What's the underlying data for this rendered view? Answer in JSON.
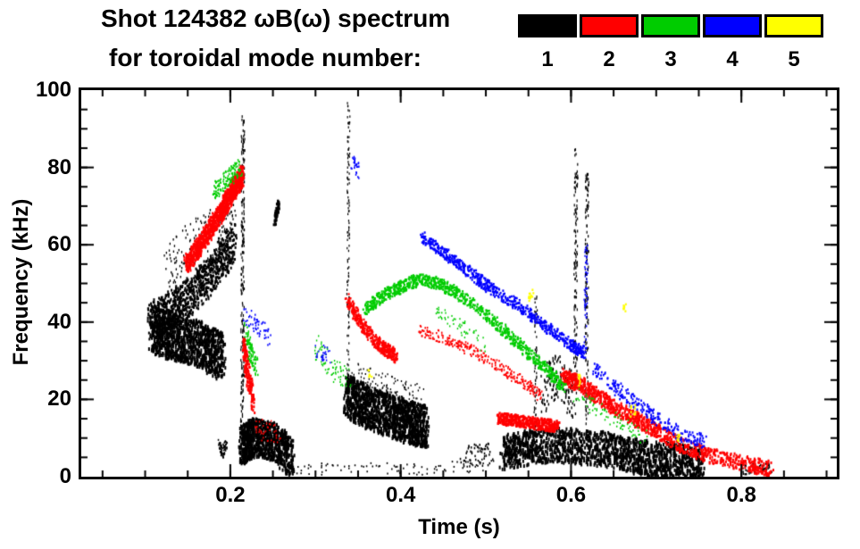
{
  "chart_data": {
    "type": "scatter",
    "title": "Shot 124382 ωB(ω) spectrum",
    "subtitle": "for toroidal mode number:",
    "xlabel": "Time (s)",
    "ylabel": "Frequency (kHz)",
    "xlim": [
      0.025,
      0.912
    ],
    "ylim": [
      0,
      100
    ],
    "xticks": [
      {
        "v": 0.2,
        "label": "0.2"
      },
      {
        "v": 0.4,
        "label": "0.4"
      },
      {
        "v": 0.6,
        "label": "0.6"
      },
      {
        "v": 0.8,
        "label": "0.8"
      }
    ],
    "xminor_step": 0.05,
    "yticks": [
      {
        "v": 0,
        "label": "0"
      },
      {
        "v": 20,
        "label": "20"
      },
      {
        "v": 40,
        "label": "40"
      },
      {
        "v": 60,
        "label": "60"
      },
      {
        "v": 80,
        "label": "80"
      },
      {
        "v": 100,
        "label": "100"
      }
    ],
    "yminor_step": 5,
    "grid": false,
    "legend_position": "top-right",
    "legend": [
      {
        "label": "1",
        "color": "#000000"
      },
      {
        "label": "2",
        "color": "#ff0000"
      },
      {
        "label": "3",
        "color": "#00cc00"
      },
      {
        "label": "4",
        "color": "#0000ff"
      },
      {
        "label": "5",
        "color": "#ffff00"
      }
    ],
    "series": [
      {
        "name": "n=1",
        "color": "#000000",
        "tracks": [
          {
            "p": [
              [
                0.105,
                40
              ],
              [
                0.13,
                43
              ],
              [
                0.155,
                47
              ],
              [
                0.18,
                53
              ],
              [
                0.205,
                61
              ]
            ],
            "n": 850,
            "fj": 5,
            "tj": 0.004,
            "w": 2,
            "h": 3
          },
          {
            "p": [
              [
                0.108,
                38
              ],
              [
                0.135,
                36
              ],
              [
                0.165,
                34
              ],
              [
                0.19,
                31
              ]
            ],
            "n": 1100,
            "fj": 6,
            "tj": 0.005,
            "w": 2,
            "h": 4
          },
          {
            "p": [
              [
                0.125,
                54
              ],
              [
                0.155,
                60
              ],
              [
                0.185,
                64
              ],
              [
                0.205,
                67
              ]
            ],
            "n": 150,
            "fj": 6,
            "tj": 0.004,
            "w": 1.3,
            "h": 2.5
          },
          {
            "p": [
              [
                0.214,
                5
              ],
              [
                0.215,
                93
              ]
            ],
            "n": 230,
            "fj": 2,
            "tj": 0.002,
            "w": 1.2,
            "h": 3
          },
          {
            "p": [
              [
                0.252,
                66
              ],
              [
                0.257,
                71
              ]
            ],
            "n": 70,
            "fj": 1.5,
            "tj": 0.0012,
            "w": 2,
            "h": 3
          },
          {
            "p": [
              [
                0.213,
                8
              ],
              [
                0.228,
                10
              ],
              [
                0.25,
                9
              ],
              [
                0.272,
                5
              ]
            ],
            "n": 900,
            "fj": 5,
            "tj": 0.004,
            "w": 2,
            "h": 4
          },
          {
            "p": [
              [
                0.186,
                9
              ],
              [
                0.191,
                6
              ],
              [
                0.196,
                9
              ]
            ],
            "n": 70,
            "fj": 1.5,
            "tj": 0.001,
            "w": 1.5,
            "h": 2
          },
          {
            "p": [
              [
                0.336,
                21
              ],
              [
                0.36,
                18
              ],
              [
                0.385,
                16
              ],
              [
                0.41,
                14
              ],
              [
                0.43,
                13
              ]
            ],
            "n": 1350,
            "fj": 5.5,
            "tj": 0.004,
            "w": 2,
            "h": 4
          },
          {
            "p": [
              [
                0.338,
                25
              ],
              [
                0.339,
                96
              ]
            ],
            "n": 110,
            "fj": 2,
            "tj": 0.0015,
            "w": 1.2,
            "h": 2.5
          },
          {
            "p": [
              [
                0.52,
                6
              ],
              [
                0.56,
                8
              ],
              [
                0.6,
                8
              ],
              [
                0.64,
                7
              ],
              [
                0.68,
                5
              ],
              [
                0.72,
                4
              ],
              [
                0.755,
                3
              ]
            ],
            "n": 1600,
            "fj": 4.5,
            "tj": 0.004,
            "w": 2,
            "h": 4
          },
          {
            "p": [
              [
                0.605,
                20
              ],
              [
                0.606,
                85
              ]
            ],
            "n": 130,
            "fj": 2,
            "tj": 0.002,
            "w": 1.2,
            "h": 3
          },
          {
            "p": [
              [
                0.618,
                15
              ],
              [
                0.619,
                80
              ]
            ],
            "n": 140,
            "fj": 2,
            "tj": 0.002,
            "w": 1.2,
            "h": 3
          },
          {
            "p": [
              [
                0.27,
                2
              ],
              [
                0.35,
                2
              ],
              [
                0.44,
                2
              ],
              [
                0.5,
                3
              ]
            ],
            "n": 90,
            "fj": 1.5,
            "tj": 0.01,
            "w": 1.5,
            "h": 2
          },
          {
            "p": [
              [
                0.47,
                5
              ],
              [
                0.505,
                6
              ]
            ],
            "n": 55,
            "fj": 3,
            "tj": 0.006,
            "w": 1.5,
            "h": 2.5
          },
          {
            "p": [
              [
                0.8,
                2
              ],
              [
                0.835,
                2
              ]
            ],
            "n": 45,
            "fj": 1.5,
            "tj": 0.005,
            "w": 1.5,
            "h": 2.5
          },
          {
            "p": [
              [
                0.565,
                22
              ],
              [
                0.585,
                26
              ],
              [
                0.603,
                20
              ]
            ],
            "n": 140,
            "fj": 6,
            "tj": 0.004,
            "w": 1.4,
            "h": 3
          },
          {
            "p": [
              [
                0.558,
                12
              ],
              [
                0.559,
                48
              ]
            ],
            "n": 55,
            "fj": 2,
            "tj": 0.0015,
            "w": 1.2,
            "h": 2.5
          },
          {
            "p": [
              [
                0.345,
                27
              ],
              [
                0.385,
                24
              ],
              [
                0.425,
                21
              ]
            ],
            "n": 90,
            "fj": 2.5,
            "tj": 0.004,
            "w": 1.3,
            "h": 2
          }
        ]
      },
      {
        "name": "n=2",
        "color": "#ff0000",
        "tracks": [
          {
            "p": [
              [
                0.148,
                55
              ],
              [
                0.168,
                61
              ],
              [
                0.188,
                68
              ],
              [
                0.203,
                74
              ],
              [
                0.215,
                78
              ]
            ],
            "n": 1050,
            "fj": 2.5,
            "tj": 0.003,
            "w": 2,
            "h": 3
          },
          {
            "p": [
              [
                0.216,
                34
              ],
              [
                0.221,
                26
              ],
              [
                0.227,
                19
              ]
            ],
            "n": 160,
            "fj": 3,
            "tj": 0.002,
            "w": 2,
            "h": 3
          },
          {
            "p": [
              [
                0.337,
                46
              ],
              [
                0.355,
                39
              ],
              [
                0.375,
                34
              ],
              [
                0.395,
                31
              ]
            ],
            "n": 420,
            "fj": 1.8,
            "tj": 0.002,
            "w": 2,
            "h": 2.5
          },
          {
            "p": [
              [
                0.42,
                38
              ],
              [
                0.45,
                36
              ],
              [
                0.48,
                33
              ],
              [
                0.51,
                29
              ],
              [
                0.54,
                25
              ],
              [
                0.565,
                21
              ]
            ],
            "n": 280,
            "fj": 1.5,
            "tj": 0.003,
            "w": 1.6,
            "h": 2.2
          },
          {
            "p": [
              [
                0.515,
                15
              ],
              [
                0.55,
                14
              ],
              [
                0.585,
                13
              ]
            ],
            "n": 340,
            "fj": 1.5,
            "tj": 0.002,
            "w": 2.4,
            "h": 3
          },
          {
            "p": [
              [
                0.59,
                26
              ],
              [
                0.61,
                24
              ],
              [
                0.63,
                21
              ],
              [
                0.65,
                18
              ],
              [
                0.675,
                15
              ],
              [
                0.7,
                12
              ],
              [
                0.73,
                8
              ],
              [
                0.77,
                5
              ],
              [
                0.81,
                3
              ],
              [
                0.835,
                2
              ]
            ],
            "n": 1000,
            "fj": 2,
            "tj": 0.003,
            "w": 2,
            "h": 3
          },
          {
            "p": [
              [
                0.23,
                13
              ],
              [
                0.258,
                11
              ]
            ],
            "n": 40,
            "fj": 3,
            "tj": 0.004,
            "w": 1.4,
            "h": 2
          }
        ]
      },
      {
        "name": "n=3",
        "color": "#00cc00",
        "tracks": [
          {
            "p": [
              [
                0.18,
                74
              ],
              [
                0.196,
                77
              ],
              [
                0.212,
                80
              ]
            ],
            "n": 140,
            "fj": 2.5,
            "tj": 0.002,
            "w": 1.5,
            "h": 2.2
          },
          {
            "p": [
              [
                0.218,
                38
              ],
              [
                0.224,
                32
              ],
              [
                0.231,
                28
              ]
            ],
            "n": 85,
            "fj": 2.5,
            "tj": 0.002,
            "w": 1.5,
            "h": 2.5
          },
          {
            "p": [
              [
                0.3,
                34
              ],
              [
                0.32,
                28
              ],
              [
                0.34,
                25
              ]
            ],
            "n": 75,
            "fj": 3,
            "tj": 0.003,
            "w": 1.4,
            "h": 2
          },
          {
            "p": [
              [
                0.358,
                43
              ],
              [
                0.38,
                47
              ],
              [
                0.4,
                49
              ],
              [
                0.422,
                51
              ],
              [
                0.445,
                50
              ],
              [
                0.47,
                47
              ],
              [
                0.5,
                42
              ],
              [
                0.53,
                36
              ],
              [
                0.555,
                31
              ],
              [
                0.575,
                27
              ],
              [
                0.592,
                23
              ]
            ],
            "n": 880,
            "fj": 1.6,
            "tj": 0.002,
            "w": 2,
            "h": 2.5
          },
          {
            "p": [
              [
                0.44,
                43
              ],
              [
                0.47,
                39
              ],
              [
                0.5,
                34
              ]
            ],
            "n": 55,
            "fj": 2,
            "tj": 0.004,
            "w": 1.4,
            "h": 2
          },
          {
            "p": [
              [
                0.605,
                21
              ],
              [
                0.635,
                17
              ],
              [
                0.665,
                13
              ],
              [
                0.69,
                10
              ]
            ],
            "n": 80,
            "fj": 2,
            "tj": 0.004,
            "w": 1.5,
            "h": 2
          }
        ]
      },
      {
        "name": "n=4",
        "color": "#0000ff",
        "tracks": [
          {
            "p": [
              [
                0.215,
                42
              ],
              [
                0.23,
                39
              ],
              [
                0.246,
                36
              ]
            ],
            "n": 55,
            "fj": 2.5,
            "tj": 0.003,
            "w": 1.5,
            "h": 2.2
          },
          {
            "p": [
              [
                0.343,
                82
              ],
              [
                0.35,
                79
              ]
            ],
            "n": 26,
            "fj": 2,
            "tj": 0.002,
            "w": 1.5,
            "h": 2.2
          },
          {
            "p": [
              [
                0.3,
                33
              ],
              [
                0.317,
                31
              ]
            ],
            "n": 30,
            "fj": 2,
            "tj": 0.003,
            "w": 1.4,
            "h": 2
          },
          {
            "p": [
              [
                0.425,
                62
              ],
              [
                0.45,
                58
              ],
              [
                0.48,
                53
              ],
              [
                0.51,
                48
              ],
              [
                0.54,
                44
              ],
              [
                0.57,
                39
              ],
              [
                0.6,
                34
              ],
              [
                0.617,
                32
              ]
            ],
            "n": 680,
            "fj": 1.5,
            "tj": 0.002,
            "w": 2,
            "h": 2.5
          },
          {
            "p": [
              [
                0.617,
                35
              ],
              [
                0.618,
                60
              ]
            ],
            "n": 50,
            "fj": 2,
            "tj": 0.002,
            "w": 1.4,
            "h": 2.2
          },
          {
            "p": [
              [
                0.627,
                28
              ],
              [
                0.652,
                23
              ],
              [
                0.677,
                19
              ],
              [
                0.702,
                15
              ],
              [
                0.73,
                11
              ],
              [
                0.757,
                9
              ]
            ],
            "n": 250,
            "fj": 1.8,
            "tj": 0.003,
            "w": 1.8,
            "h": 2.5
          }
        ]
      },
      {
        "name": "n=5",
        "color": "#ffff00",
        "tracks": [
          {
            "p": [
              [
                0.553,
                47
              ]
            ],
            "n": 12,
            "fj": 1.5,
            "tj": 0.003,
            "w": 2,
            "h": 2.5
          },
          {
            "p": [
              [
                0.61,
                25
              ]
            ],
            "n": 10,
            "fj": 1.5,
            "tj": 0.002,
            "w": 2,
            "h": 2.5
          },
          {
            "p": [
              [
                0.663,
                44
              ]
            ],
            "n": 8,
            "fj": 1.2,
            "tj": 0.002,
            "w": 2,
            "h": 2.5
          },
          {
            "p": [
              [
                0.673,
                17
              ]
            ],
            "n": 10,
            "fj": 1.5,
            "tj": 0.003,
            "w": 2,
            "h": 2.5
          },
          {
            "p": [
              [
                0.726,
                10
              ]
            ],
            "n": 8,
            "fj": 1.2,
            "tj": 0.002,
            "w": 2,
            "h": 2.5
          },
          {
            "p": [
              [
                0.364,
                27
              ]
            ],
            "n": 6,
            "fj": 1.2,
            "tj": 0.002,
            "w": 2,
            "h": 2.5
          }
        ]
      }
    ]
  }
}
